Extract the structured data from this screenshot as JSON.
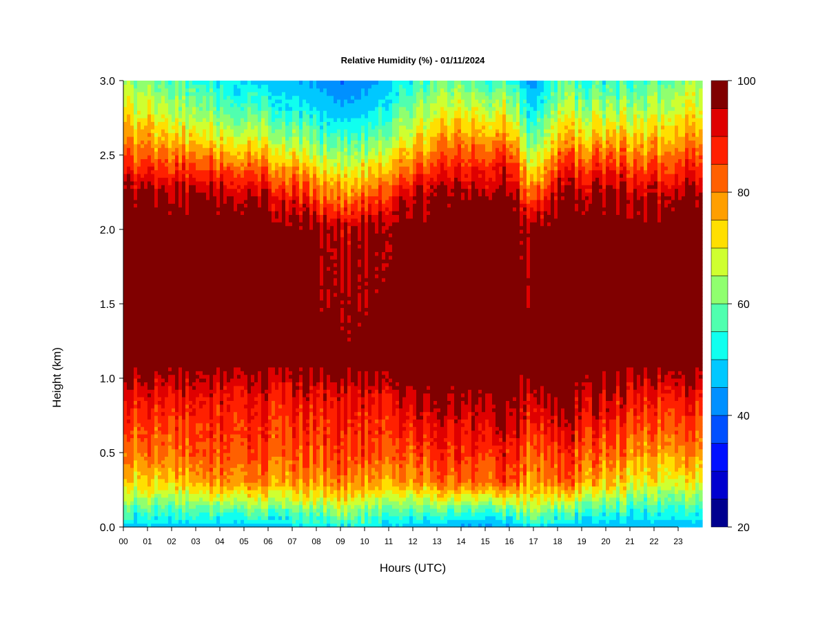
{
  "chart_data": {
    "type": "heatmap",
    "title": "Relative Humidity (%) - 01/11/2024",
    "xlabel": "Hours (UTC)",
    "ylabel": "Height (km)",
    "xlim": [
      0,
      24
    ],
    "ylim": [
      0.0,
      3.0
    ],
    "x_ticks": [
      "00",
      "01",
      "02",
      "03",
      "04",
      "05",
      "06",
      "07",
      "08",
      "09",
      "10",
      "11",
      "12",
      "13",
      "14",
      "15",
      "16",
      "17",
      "18",
      "19",
      "20",
      "21",
      "22",
      "23"
    ],
    "y_ticks": [
      "0.0",
      "0.5",
      "1.0",
      "1.5",
      "2.0",
      "2.5",
      "3.0"
    ],
    "colorbar": {
      "range": [
        20,
        100
      ],
      "step": 5,
      "tick_labels": [
        "20",
        "40",
        "60",
        "80",
        "100"
      ],
      "colors": [
        "#00008f",
        "#0000cf",
        "#0010ff",
        "#0050ff",
        "#0090ff",
        "#00c8ff",
        "#10ffef",
        "#50ffaf",
        "#90ff6f",
        "#cfff30",
        "#ffdf00",
        "#ff9f00",
        "#ff6000",
        "#ff2000",
        "#df0000",
        "#800000"
      ]
    },
    "profile_heights_km": [
      0.0,
      0.1,
      0.2,
      0.3,
      0.5,
      0.7,
      0.9,
      1.0,
      1.1,
      2.0,
      2.2,
      2.4,
      2.6,
      2.8,
      3.0
    ],
    "profiles": [
      {
        "hour": 0,
        "rh": [
          48,
          55,
          64,
          72,
          80,
          85,
          90,
          95,
          100,
          100,
          99,
          88,
          78,
          70,
          62
        ]
      },
      {
        "hour": 2,
        "rh": [
          48,
          56,
          65,
          74,
          82,
          86,
          91,
          95,
          100,
          100,
          98,
          88,
          76,
          66,
          58
        ]
      },
      {
        "hour": 4,
        "rh": [
          46,
          58,
          70,
          80,
          86,
          88,
          92,
          96,
          100,
          100,
          98,
          86,
          72,
          60,
          52
        ]
      },
      {
        "hour": 6,
        "rh": [
          47,
          57,
          68,
          78,
          84,
          87,
          90,
          95,
          100,
          100,
          95,
          82,
          68,
          56,
          48
        ]
      },
      {
        "hour": 8,
        "rh": [
          50,
          60,
          70,
          78,
          84,
          87,
          91,
          96,
          100,
          99,
          86,
          74,
          60,
          50,
          44
        ]
      },
      {
        "hour": 9,
        "rh": [
          52,
          62,
          72,
          80,
          86,
          88,
          91,
          96,
          100,
          92,
          80,
          68,
          56,
          46,
          40
        ]
      },
      {
        "hour": 10,
        "rh": [
          50,
          60,
          70,
          78,
          85,
          88,
          91,
          96,
          100,
          97,
          84,
          72,
          58,
          48,
          42
        ]
      },
      {
        "hour": 12,
        "rh": [
          48,
          56,
          68,
          78,
          85,
          90,
          96,
          100,
          100,
          100,
          96,
          84,
          72,
          62,
          54
        ]
      },
      {
        "hour": 14,
        "rh": [
          44,
          56,
          70,
          82,
          88,
          92,
          98,
          100,
          100,
          100,
          99,
          90,
          80,
          70,
          60
        ]
      },
      {
        "hour": 16,
        "rh": [
          44,
          58,
          72,
          86,
          90,
          96,
          100,
          100,
          100,
          100,
          99,
          92,
          80,
          68,
          56
        ]
      },
      {
        "hour": 17,
        "rh": [
          50,
          62,
          70,
          76,
          80,
          86,
          92,
          97,
          100,
          97,
          82,
          68,
          56,
          48,
          42
        ]
      },
      {
        "hour": 18,
        "rh": [
          48,
          58,
          72,
          84,
          88,
          94,
          100,
          100,
          100,
          100,
          98,
          88,
          76,
          66,
          58
        ]
      },
      {
        "hour": 20,
        "rh": [
          46,
          54,
          64,
          74,
          82,
          88,
          94,
          98,
          100,
          100,
          98,
          88,
          76,
          64,
          54
        ]
      },
      {
        "hour": 22,
        "rh": [
          46,
          54,
          62,
          70,
          78,
          85,
          90,
          95,
          100,
          100,
          96,
          86,
          76,
          66,
          58
        ]
      },
      {
        "hour": 24,
        "rh": [
          46,
          54,
          62,
          70,
          80,
          86,
          92,
          96,
          100,
          100,
          99,
          90,
          80,
          72,
          64
        ]
      }
    ]
  }
}
